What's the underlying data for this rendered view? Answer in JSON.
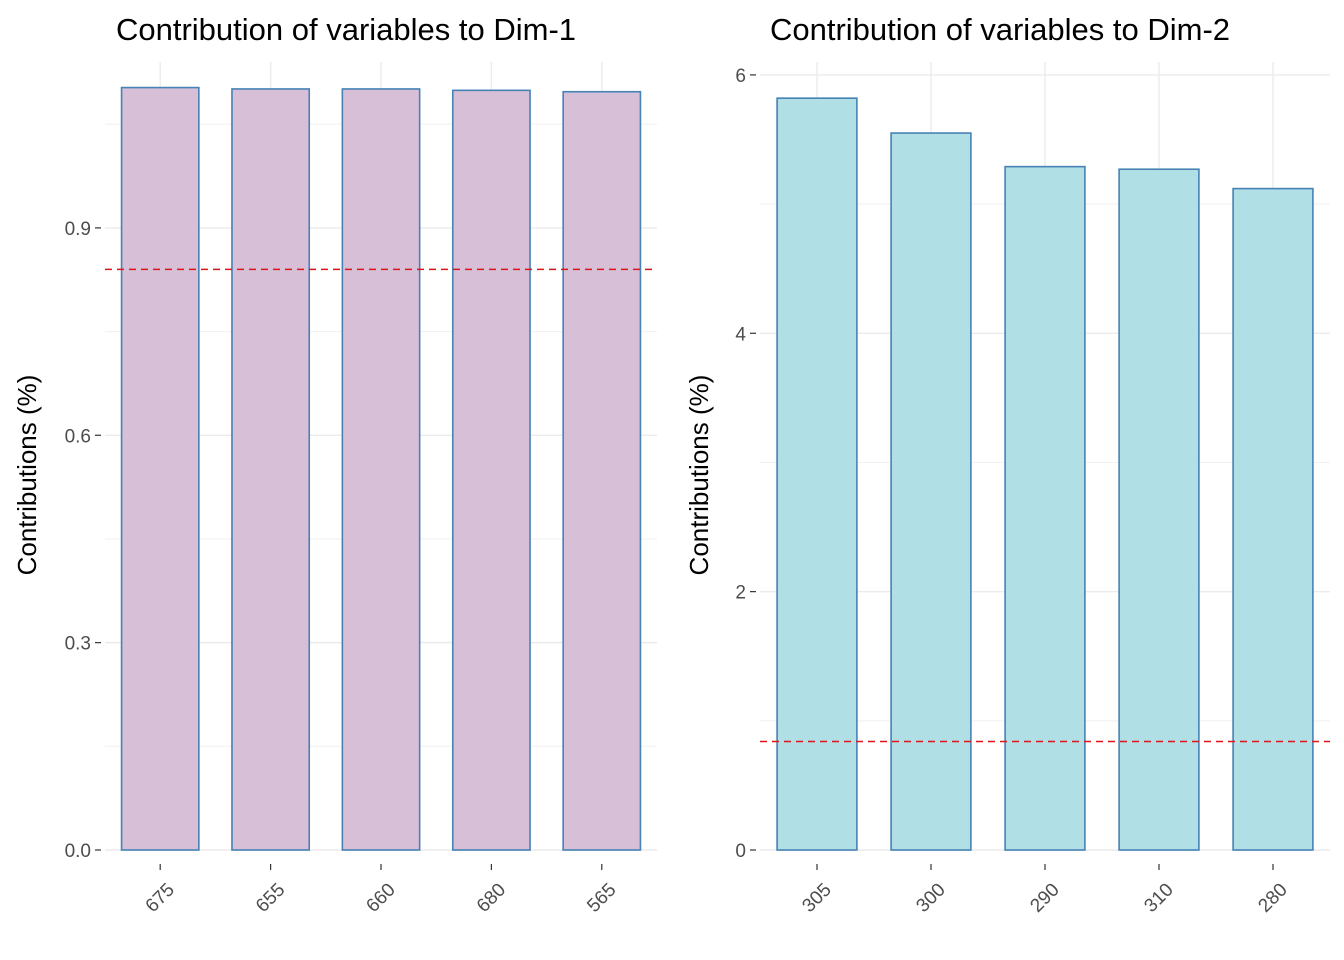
{
  "chart_data": [
    {
      "type": "bar",
      "title": "Contribution of variables to Dim-1",
      "xlabel": "",
      "ylabel": "Contributions (%)",
      "categories": [
        "675",
        "655",
        "660",
        "680",
        "565"
      ],
      "values": [
        1.103,
        1.101,
        1.101,
        1.099,
        1.097
      ],
      "ylim": [
        0,
        1.14
      ],
      "yticks": [
        0.0,
        0.3,
        0.6,
        0.9
      ],
      "ytick_labels": [
        "0.0",
        "0.3",
        "0.6",
        "0.9"
      ],
      "reference_line": 0.84,
      "bar_fill": "#d8bfd8",
      "bar_stroke": "#4682b4",
      "reference_color": "#e0141b",
      "grid": true
    },
    {
      "type": "bar",
      "title": "Contribution of variables to Dim-2",
      "xlabel": "",
      "ylabel": "Contributions (%)",
      "categories": [
        "305",
        "300",
        "290",
        "310",
        "280"
      ],
      "values": [
        5.82,
        5.55,
        5.29,
        5.27,
        5.12
      ],
      "ylim": [
        0,
        6.1
      ],
      "yticks": [
        0,
        2,
        4,
        6
      ],
      "ytick_labels": [
        "0",
        "2",
        "4",
        "6"
      ],
      "reference_line": 0.84,
      "bar_fill": "#b0dfe5",
      "bar_stroke": "#4682b4",
      "reference_color": "#e0141b",
      "grid": true
    }
  ]
}
